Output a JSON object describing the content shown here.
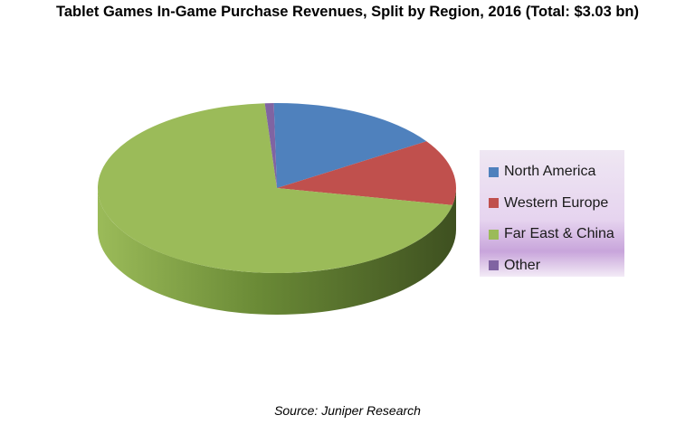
{
  "chart_data": {
    "type": "pie",
    "title": "Tablet Games In-Game Purchase Revenues, Split by Region, 2016 (Total: $3.03 bn)",
    "source": "Source: Juniper Research",
    "three_d": true,
    "legend_position": "right",
    "unit": "share of total",
    "slices": [
      {
        "name": "North America",
        "value": 0.16,
        "color": "#4f81bd"
      },
      {
        "name": "Western Europe",
        "value": 0.125,
        "color": "#c0504d"
      },
      {
        "name": "Far East & China",
        "value": 0.707,
        "color": "#9bbb59"
      },
      {
        "name": "Other",
        "value": 0.008,
        "color": "#8064a2"
      }
    ]
  }
}
